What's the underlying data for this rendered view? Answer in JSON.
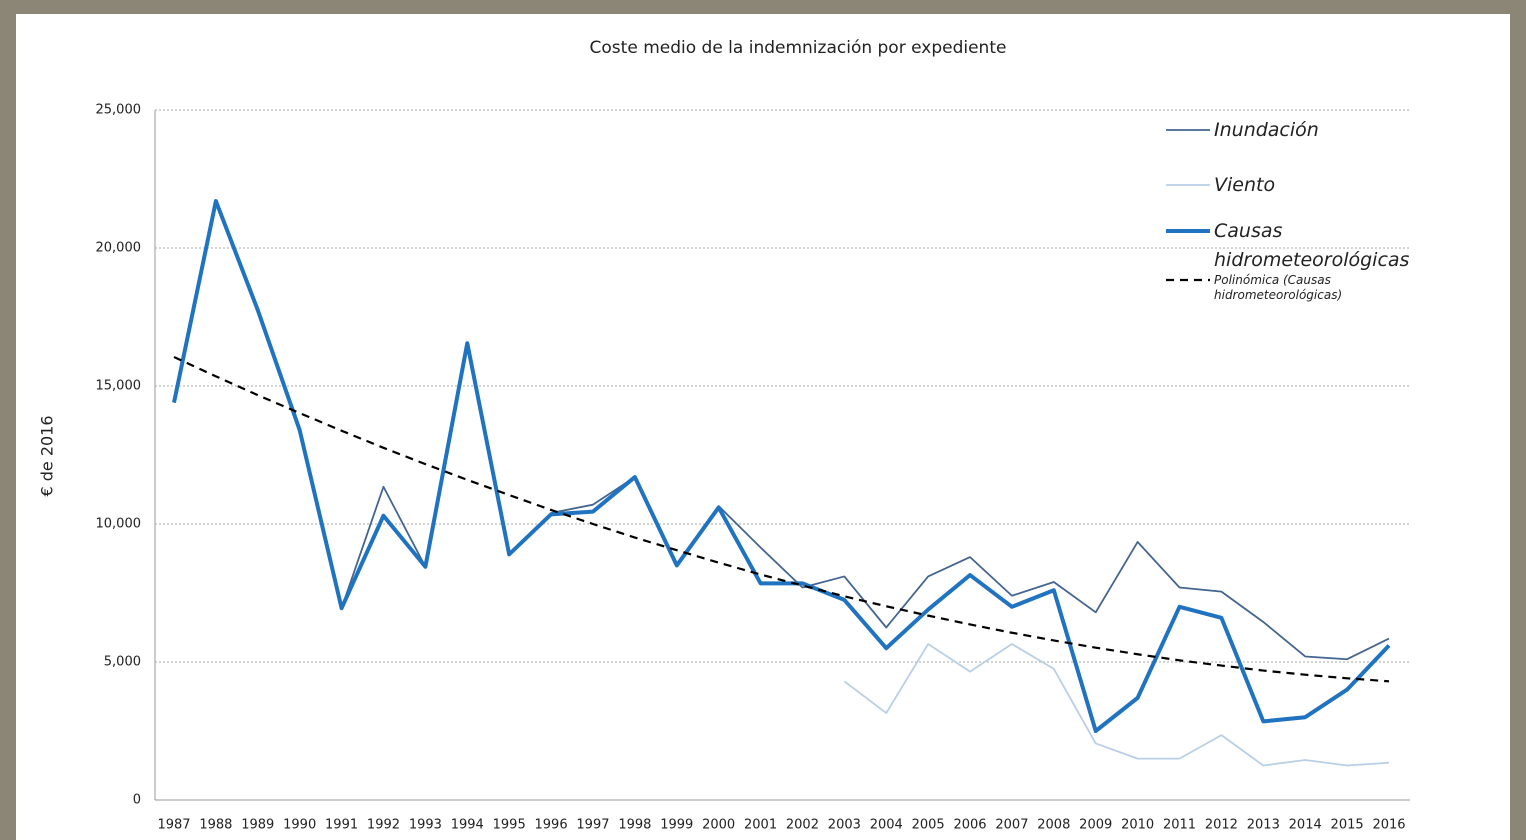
{
  "chart_data": {
    "type": "line",
    "title": "Coste medio de la indemnización por expediente",
    "y_label": "€ de 2016",
    "categories": [
      "1987",
      "1988",
      "1989",
      "1990",
      "1991",
      "1992",
      "1993",
      "1994",
      "1995",
      "1996",
      "1997",
      "1998",
      "1999",
      "2000",
      "2001",
      "2002",
      "2003",
      "2004",
      "2005",
      "2006",
      "2007",
      "2008",
      "2009",
      "2010",
      "2011",
      "2012",
      "2013",
      "2014",
      "2015",
      "2016"
    ],
    "ylim": [
      0,
      25000
    ],
    "yticks": [
      0,
      {
        "value": 5000,
        "label": "5,000"
      },
      {
        "value": 10000,
        "label": "10,000"
      },
      {
        "value": 15000,
        "label": "15,000"
      },
      {
        "value": 20000,
        "label": "20,000"
      },
      {
        "value": 25000,
        "label": "25,000"
      }
    ],
    "grid": true,
    "legend": "right",
    "series": [
      {
        "name": "Inundación",
        "color": "#44658f",
        "width": 1.8,
        "values": [
          14400,
          21700,
          17750,
          13400,
          6950,
          11350,
          8450,
          16550,
          8900,
          10400,
          10700,
          11700,
          8500,
          10650,
          9150,
          7700,
          8100,
          6250,
          8100,
          8800,
          7400,
          7900,
          6800,
          9350,
          7700,
          7550,
          6450,
          5200,
          5100,
          5850
        ]
      },
      {
        "name": "Viento",
        "color": "#b8cfe6",
        "width": 1.8,
        "values": [
          null,
          null,
          null,
          null,
          null,
          null,
          null,
          null,
          null,
          null,
          null,
          null,
          null,
          null,
          null,
          null,
          4300,
          3150,
          5650,
          4650,
          5650,
          4750,
          2050,
          1500,
          1500,
          2350,
          1250,
          1450,
          1250,
          1350
        ]
      },
      {
        "name": "Causas hidrometeorológicas",
        "color": "#1f73c0",
        "width": 4,
        "values": [
          14400,
          21700,
          17750,
          13400,
          6950,
          10300,
          8450,
          16550,
          8900,
          10350,
          10450,
          11700,
          8500,
          10600,
          7850,
          7850,
          7250,
          5500,
          6900,
          8150,
          7000,
          7600,
          2500,
          3700,
          7000,
          6600,
          2850,
          3000,
          4000,
          5600
        ]
      },
      {
        "name": "Polinómica (Causas hidrometeorológicas)",
        "color": "#000000",
        "width": 2.2,
        "dashed": true,
        "values": [
          16050,
          15350,
          14670,
          14020,
          13380,
          12760,
          12170,
          11600,
          11050,
          10510,
          10000,
          9510,
          9050,
          8600,
          8170,
          7770,
          7380,
          7020,
          6680,
          6360,
          6060,
          5780,
          5520,
          5280,
          5060,
          4870,
          4690,
          4540,
          4410,
          4300
        ]
      }
    ]
  }
}
